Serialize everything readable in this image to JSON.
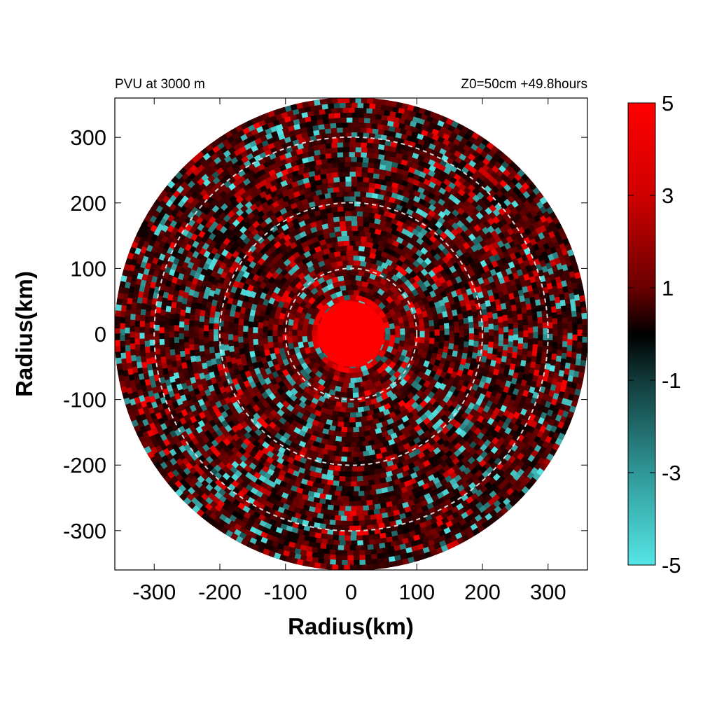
{
  "header": {
    "left_title": "PVU at  3000 m",
    "right_title": "Z0=50cm  +49.8hours"
  },
  "chart_data": {
    "type": "heatmap",
    "projection": "polar field on cartesian axes",
    "xlabel": "Radius(km)",
    "ylabel": "Radius(km)",
    "xlim": [
      -360,
      360
    ],
    "ylim": [
      -360,
      360
    ],
    "x_ticks": [
      -300,
      -200,
      -100,
      0,
      100,
      200,
      300
    ],
    "y_ticks": [
      300,
      200,
      100,
      0,
      -100,
      -200,
      -300
    ],
    "x_tick_labels": [
      "-300",
      "-200",
      "-100",
      "0",
      "100",
      "200",
      "300"
    ],
    "y_tick_labels": [
      "300",
      "200",
      "100",
      "0",
      "-100",
      "-200",
      "-300"
    ],
    "data_domain_radius": 360,
    "reference_circles_radius": [
      100,
      200,
      300
    ],
    "reference_circle_style": "dashed",
    "core": {
      "radius": 50,
      "value": 5
    },
    "colorbar": {
      "range": [
        -5,
        5
      ],
      "tick_values": [
        5,
        3,
        1,
        -1,
        -3,
        -5
      ],
      "tick_labels": [
        "5",
        "3",
        "1",
        "-1",
        "-3",
        "-5"
      ],
      "colors": {
        "max": "#ff0000",
        "mid_high": "#880000",
        "zero": "#000000",
        "mid_low": "#2a7f7f",
        "min": "#55e5e5"
      }
    },
    "grid": false,
    "legend": "colorbar right"
  }
}
